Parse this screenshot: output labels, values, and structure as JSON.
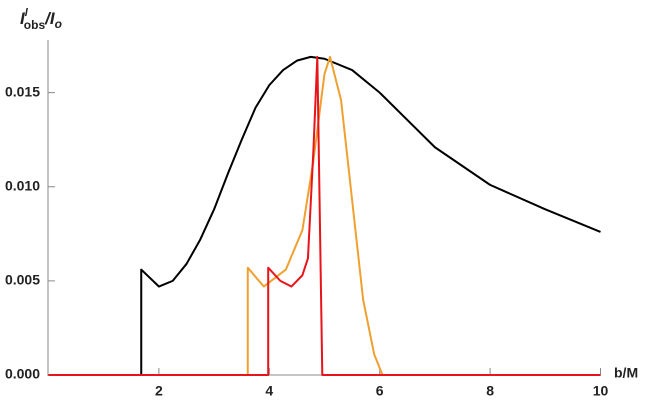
{
  "chart_data": {
    "type": "line",
    "ylabel": {
      "base": "I",
      "sup": "l",
      "sub": "obs",
      "rest": "/I",
      "rest_sub": "o"
    },
    "xlabel": "b/M",
    "xlim": [
      0,
      10
    ],
    "xticks": [
      2,
      4,
      6,
      8,
      10
    ],
    "ylim": [
      0,
      0.017
    ],
    "yticks": [
      {
        "value": 0,
        "label": "0.000"
      },
      {
        "value": 0.005,
        "label": "0.005"
      },
      {
        "value": 0.01,
        "label": "0.010"
      },
      {
        "value": 0.015,
        "label": "0.015"
      }
    ],
    "series": [
      {
        "color": "#000000",
        "x": [
          0,
          1.68,
          1.68,
          2.0,
          2.25,
          2.5,
          2.75,
          3.0,
          3.25,
          3.5,
          3.75,
          4.0,
          4.25,
          4.5,
          4.75,
          5.0,
          5.5,
          6.0,
          7.0,
          8.0,
          9.0,
          10.0
        ],
        "values": [
          0,
          0,
          0.0056,
          0.0047,
          0.005,
          0.0059,
          0.0072,
          0.0088,
          0.0107,
          0.0125,
          0.0142,
          0.0154,
          0.0162,
          0.0167,
          0.0169,
          0.0168,
          0.0162,
          0.015,
          0.0121,
          0.0101,
          0.0088,
          0.0076
        ]
      },
      {
        "color": "#f0a030",
        "x": [
          0,
          3.61,
          3.61,
          3.9,
          4.3,
          4.6,
          4.8,
          5.0,
          5.1,
          5.3,
          5.5,
          5.7,
          5.9,
          6.05,
          10
        ],
        "values": [
          0,
          0,
          0.0057,
          0.0047,
          0.0056,
          0.0077,
          0.0114,
          0.016,
          0.0169,
          0.0146,
          0.0093,
          0.004,
          0.0011,
          0,
          0
        ]
      },
      {
        "color": "#e8141a",
        "x": [
          0,
          3.98,
          3.98,
          4.2,
          4.4,
          4.6,
          4.7,
          4.8,
          4.87,
          4.96,
          10
        ],
        "values": [
          0,
          0,
          0.0057,
          0.005,
          0.0047,
          0.0053,
          0.0062,
          0.012,
          0.0169,
          0,
          0
        ]
      }
    ]
  }
}
